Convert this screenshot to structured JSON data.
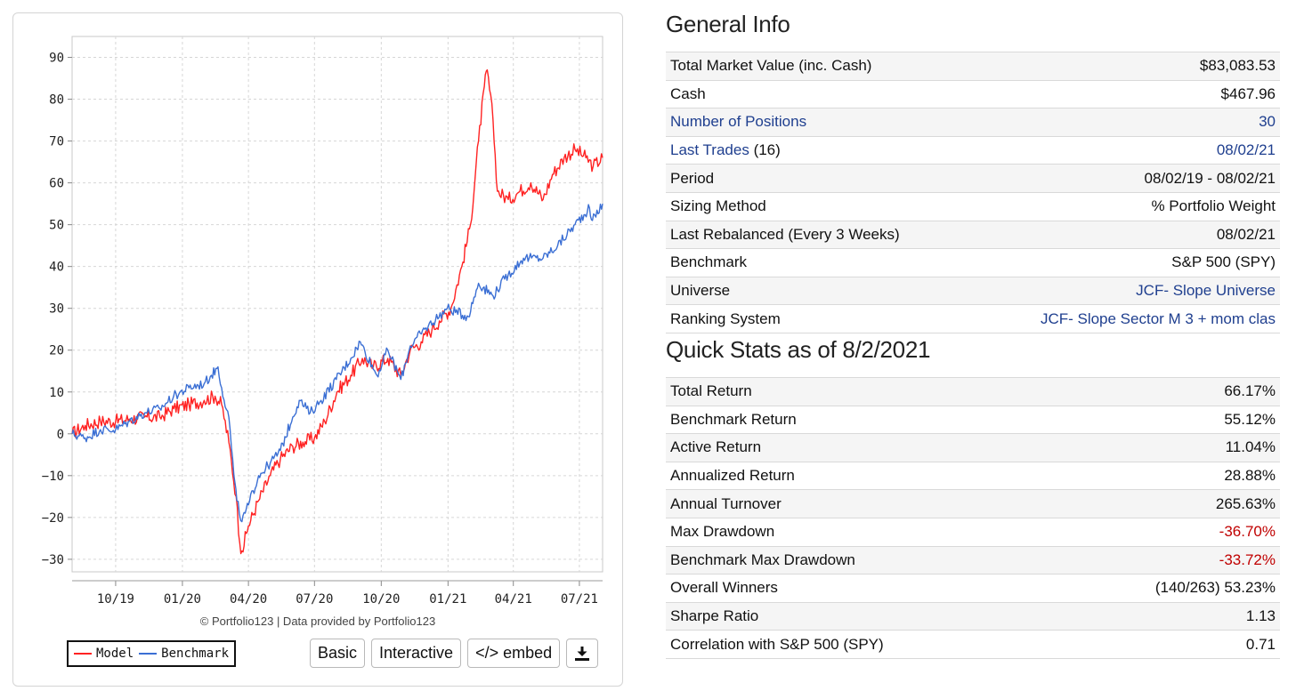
{
  "chart_data": {
    "type": "line",
    "ylim": [
      -33,
      95
    ],
    "yticks": [
      90,
      80,
      70,
      60,
      50,
      40,
      30,
      20,
      10,
      0,
      -10,
      -20,
      -30
    ],
    "xlim": [
      "2019-08-02",
      "2021-08-02"
    ],
    "xticks": [
      {
        "label": "10/19",
        "date": "2019-10-01"
      },
      {
        "label": "01/20",
        "date": "2020-01-01"
      },
      {
        "label": "04/20",
        "date": "2020-04-01"
      },
      {
        "label": "07/20",
        "date": "2020-07-01"
      },
      {
        "label": "10/20",
        "date": "2020-10-01"
      },
      {
        "label": "01/21",
        "date": "2021-01-01"
      },
      {
        "label": "04/21",
        "date": "2021-04-01"
      },
      {
        "label": "07/21",
        "date": "2021-07-01"
      }
    ],
    "grid": true,
    "legend_position": "bottom-left",
    "series": [
      {
        "name": "Model",
        "color": "#ff2222",
        "points": [
          [
            "2019-08-02",
            0
          ],
          [
            "2019-08-20",
            2
          ],
          [
            "2019-09-10",
            3
          ],
          [
            "2019-10-01",
            3
          ],
          [
            "2019-10-20",
            3.5
          ],
          [
            "2019-11-10",
            4
          ],
          [
            "2019-12-01",
            4
          ],
          [
            "2019-12-20",
            6
          ],
          [
            "2020-01-10",
            7
          ],
          [
            "2020-01-31",
            8
          ],
          [
            "2020-02-15",
            9
          ],
          [
            "2020-02-24",
            7
          ],
          [
            "2020-03-05",
            -2
          ],
          [
            "2020-03-15",
            -15
          ],
          [
            "2020-03-20",
            -26
          ],
          [
            "2020-03-23",
            -28
          ],
          [
            "2020-04-01",
            -22
          ],
          [
            "2020-04-15",
            -16
          ],
          [
            "2020-05-01",
            -10
          ],
          [
            "2020-05-15",
            -6
          ],
          [
            "2020-06-01",
            -3
          ],
          [
            "2020-06-15",
            -2
          ],
          [
            "2020-07-01",
            -1
          ],
          [
            "2020-07-15",
            3
          ],
          [
            "2020-08-01",
            10
          ],
          [
            "2020-08-20",
            14
          ],
          [
            "2020-09-05",
            18
          ],
          [
            "2020-09-20",
            16
          ],
          [
            "2020-10-10",
            18
          ],
          [
            "2020-10-28",
            14
          ],
          [
            "2020-11-10",
            20
          ],
          [
            "2020-11-25",
            22
          ],
          [
            "2020-12-10",
            25
          ],
          [
            "2020-12-20",
            27
          ],
          [
            "2021-01-05",
            30
          ],
          [
            "2021-01-20",
            40
          ],
          [
            "2021-02-01",
            50
          ],
          [
            "2021-02-12",
            70
          ],
          [
            "2021-02-20",
            83
          ],
          [
            "2021-02-24",
            87
          ],
          [
            "2021-03-04",
            75
          ],
          [
            "2021-03-10",
            58
          ],
          [
            "2021-03-25",
            56
          ],
          [
            "2021-04-10",
            58
          ],
          [
            "2021-04-25",
            60
          ],
          [
            "2021-05-12",
            56
          ],
          [
            "2021-05-25",
            62
          ],
          [
            "2021-06-10",
            66
          ],
          [
            "2021-06-25",
            68
          ],
          [
            "2021-07-10",
            66
          ],
          [
            "2021-07-20",
            64
          ],
          [
            "2021-08-02",
            66
          ]
        ]
      },
      {
        "name": "Benchmark",
        "color": "#3b6fd4",
        "points": [
          [
            "2019-08-02",
            0
          ],
          [
            "2019-08-20",
            -1
          ],
          [
            "2019-09-10",
            1
          ],
          [
            "2019-10-01",
            1
          ],
          [
            "2019-10-20",
            3
          ],
          [
            "2019-11-10",
            5
          ],
          [
            "2019-12-01",
            6
          ],
          [
            "2019-12-20",
            9
          ],
          [
            "2020-01-10",
            11
          ],
          [
            "2020-01-31",
            12
          ],
          [
            "2020-02-10",
            14
          ],
          [
            "2020-02-19",
            16
          ],
          [
            "2020-02-24",
            11
          ],
          [
            "2020-03-05",
            4
          ],
          [
            "2020-03-12",
            -10
          ],
          [
            "2020-03-16",
            -16
          ],
          [
            "2020-03-23",
            -21
          ],
          [
            "2020-04-01",
            -17
          ],
          [
            "2020-04-15",
            -10
          ],
          [
            "2020-05-01",
            -7
          ],
          [
            "2020-05-15",
            -4
          ],
          [
            "2020-06-01",
            4
          ],
          [
            "2020-06-10",
            8
          ],
          [
            "2020-06-25",
            5
          ],
          [
            "2020-07-10",
            8
          ],
          [
            "2020-07-31",
            13
          ],
          [
            "2020-08-20",
            18
          ],
          [
            "2020-09-02",
            22
          ],
          [
            "2020-09-25",
            14
          ],
          [
            "2020-10-10",
            20
          ],
          [
            "2020-10-28",
            13
          ],
          [
            "2020-11-10",
            21
          ],
          [
            "2020-11-30",
            25
          ],
          [
            "2020-12-31",
            30
          ],
          [
            "2021-01-29",
            28
          ],
          [
            "2021-02-12",
            36
          ],
          [
            "2021-03-04",
            33
          ],
          [
            "2021-03-20",
            37
          ],
          [
            "2021-04-15",
            42
          ],
          [
            "2021-05-12",
            42
          ],
          [
            "2021-06-01",
            45
          ],
          [
            "2021-06-25",
            50
          ],
          [
            "2021-07-15",
            54
          ],
          [
            "2021-07-19",
            51
          ],
          [
            "2021-08-02",
            55
          ]
        ]
      }
    ]
  },
  "credit_text": "© Portfolio123 | Data provided by Portfolio123",
  "legend": {
    "model_label": "Model",
    "model_color": "#ff2222",
    "benchmark_label": "Benchmark",
    "benchmark_color": "#3b6fd4"
  },
  "buttons": {
    "basic": "Basic",
    "interactive": "Interactive",
    "embed": "</> embed",
    "download_icon": "download-icon"
  },
  "general_info": {
    "title": "General Info",
    "rows": [
      {
        "label": "Total Market Value (inc. Cash)",
        "value": "$83,083.53"
      },
      {
        "label": "Cash",
        "value": "$467.96"
      },
      {
        "label": "Number of Positions",
        "value": "30"
      },
      {
        "label": "Last Trades",
        "label_suffix": "(16)",
        "value": "08/02/21"
      },
      {
        "label": "Period",
        "value": "08/02/19 - 08/02/21"
      },
      {
        "label": "Sizing Method",
        "value": "% Portfolio Weight"
      },
      {
        "label": "Last Rebalanced (Every 3 Weeks)",
        "value": "08/02/21"
      },
      {
        "label": "Benchmark",
        "value": "S&P 500 (SPY)"
      },
      {
        "label": "Universe",
        "value": "JCF- Slope Universe"
      },
      {
        "label": "Ranking System",
        "value": "JCF- Slope Sector M 3 + mom clas"
      }
    ]
  },
  "quick_stats": {
    "title": "Quick Stats as of 8/2/2021",
    "rows": [
      {
        "label": "Total Return",
        "value": "66.17%"
      },
      {
        "label": "Benchmark Return",
        "value": "55.12%"
      },
      {
        "label": "Active Return",
        "value": "11.04%"
      },
      {
        "label": "Annualized Return",
        "value": "28.88%"
      },
      {
        "label": "Annual Turnover",
        "value": "265.63%"
      },
      {
        "label": "Max Drawdown",
        "value": "-36.70%"
      },
      {
        "label": "Benchmark Max Drawdown",
        "value": "-33.72%"
      },
      {
        "label": "Overall Winners",
        "value": "(140/263) 53.23%"
      },
      {
        "label": "Sharpe Ratio",
        "value": "1.13"
      },
      {
        "label": "Correlation with S&P 500 (SPY)",
        "value": "0.71"
      }
    ]
  },
  "colors": {
    "link": "#1f3f8f",
    "negative": "#c00000"
  }
}
